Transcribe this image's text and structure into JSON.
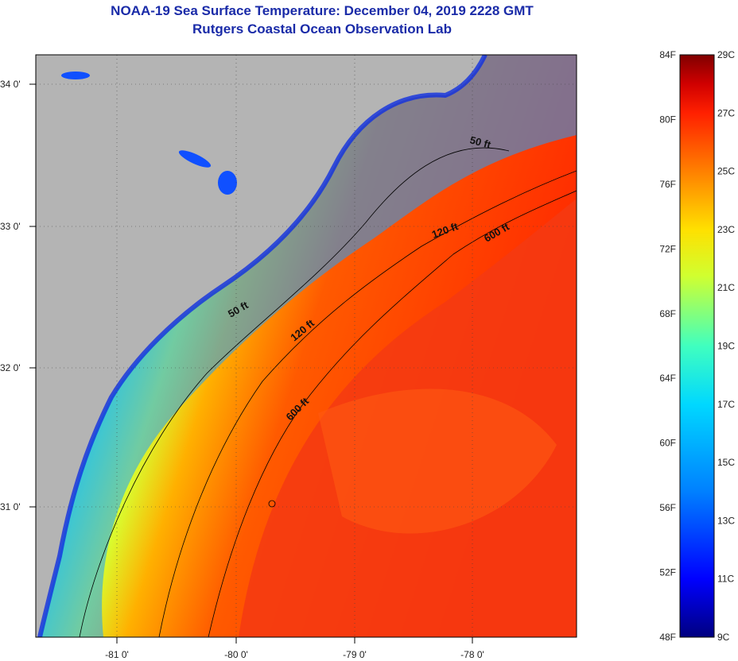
{
  "title": "NOAA-19 Sea Surface Temperature:  December 04, 2019 2228 GMT",
  "subtitle": "Rutgers Coastal Ocean Observation Lab",
  "map": {
    "lat_ticks": [
      "34 0'",
      "33 0'",
      "32 0'",
      "31 0'"
    ],
    "lon_ticks": [
      "-81 0'",
      "-80 0'",
      "-79 0'",
      "-78 0'"
    ],
    "depth_contours": [
      {
        "label": "50 ft",
        "depth_ft": 50
      },
      {
        "label": "120 ft",
        "depth_ft": 120
      },
      {
        "label": "600 ft",
        "depth_ft": 600
      }
    ],
    "contour_labels": [
      "50 ft",
      "50 ft",
      "120 ft",
      "120 ft",
      "600 ft",
      "600 ft"
    ]
  },
  "colorbar": {
    "fahrenheit_labels": [
      "84F",
      "80F",
      "76F",
      "72F",
      "68F",
      "64F",
      "60F",
      "56F",
      "52F",
      "48F"
    ],
    "celsius_labels": [
      "29C",
      "27C",
      "25C",
      "23C",
      "21C",
      "19C",
      "17C",
      "15C",
      "13C",
      "11C",
      "9C"
    ],
    "colors": [
      "#000080",
      "#0000ff",
      "#0080ff",
      "#00d8ff",
      "#40ffbf",
      "#d0ff30",
      "#ffe000",
      "#ff8000",
      "#ff2000",
      "#d00000",
      "#800000"
    ]
  },
  "colors": {
    "land": "#b4b4b4",
    "title": "#1a2ba8"
  }
}
